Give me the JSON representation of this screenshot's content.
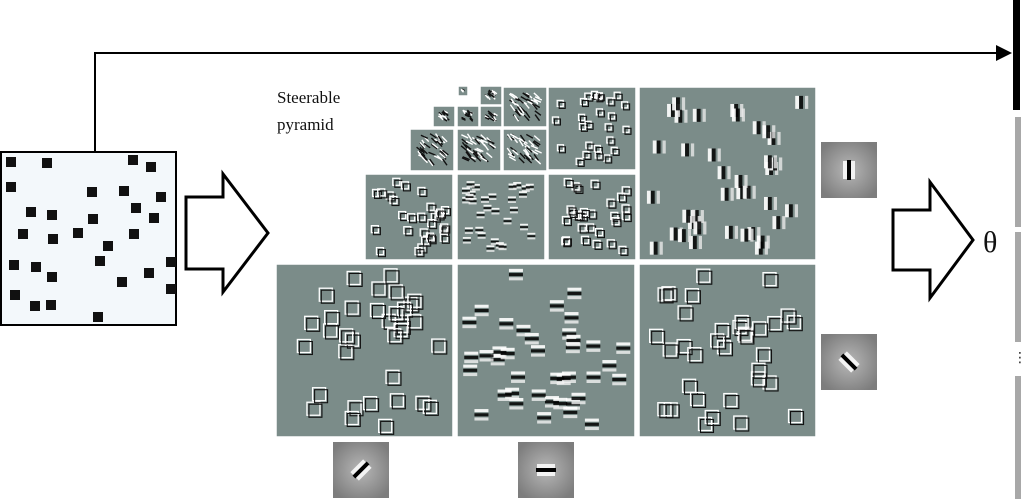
{
  "labels": {
    "pyramid_line1": "Steerable",
    "pyramid_line2": "pyramid",
    "output_symbol": "θ",
    "more_indicator": "⋮"
  },
  "colors": {
    "subband_bg": "#7b8c89",
    "input_bg": "#f3f8fb",
    "square": "#111111",
    "arrow_stroke": "#000000",
    "feature_bar_dark": "#000000",
    "feature_bar_gray": "#a8a8a8"
  },
  "elements": {
    "input_image": "input-image-random-squares",
    "decomposition_arrow": "hollow-right-arrow",
    "steerable_pyramid": "steerable-pyramid-subbands",
    "parameter_arrow": "hollow-right-arrow",
    "feature_vector": "feature-vector-bar",
    "skip_connection": "arrow-to-feature-vector",
    "filter_kernels": [
      "filter-kernel-vertical",
      "filter-kernel-diagonal",
      "filter-kernel-diagonal-left",
      "filter-kernel-horizontal"
    ]
  }
}
